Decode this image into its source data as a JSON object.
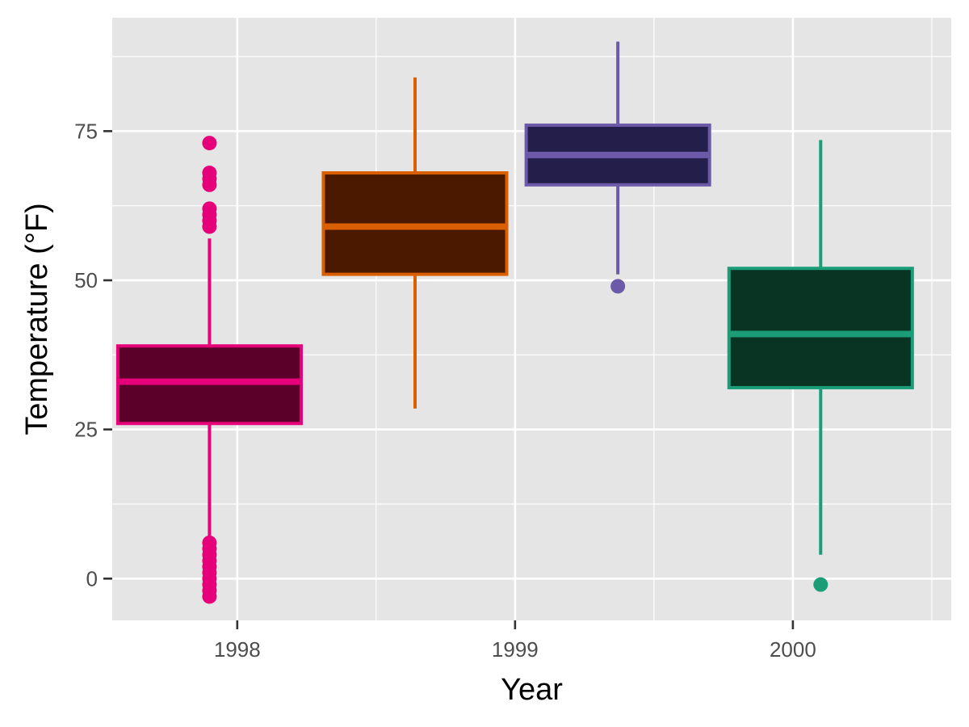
{
  "chart_data": {
    "type": "box",
    "xlabel": "Year",
    "ylabel": "Temperature (°F)",
    "ylim": [
      -7,
      94
    ],
    "xlim": [
      1997.55,
      2000.57
    ],
    "y_ticks": [
      0,
      25,
      50,
      75
    ],
    "x_ticks": [
      1998,
      1999,
      2000
    ],
    "grid": true,
    "panel_background": "#e5e5e5",
    "boxes": [
      {
        "x": 1997.9,
        "q1": 26,
        "median": 33,
        "q3": 39,
        "whisker_low": 6,
        "whisker_high": 57,
        "outliers": [
          73,
          68,
          67,
          66,
          62,
          61,
          60,
          59,
          6,
          5,
          4,
          3,
          2,
          1,
          0,
          -1,
          -2,
          -3
        ],
        "color": "#e6007a",
        "fill": "#5a0029"
      },
      {
        "x": 1998.64,
        "q1": 51,
        "median": 59,
        "q3": 68,
        "whisker_low": 28.5,
        "whisker_high": 84,
        "outliers": [],
        "color": "#d95f02",
        "fill": "#4a1900"
      },
      {
        "x": 1999.37,
        "q1": 66,
        "median": 71,
        "q3": 76,
        "whisker_low": 51,
        "whisker_high": 90,
        "outliers": [
          49
        ],
        "color": "#6a5aa8",
        "fill": "#231f4a"
      },
      {
        "x": 2000.1,
        "q1": 32,
        "median": 41,
        "q3": 52,
        "whisker_low": 4,
        "whisker_high": 73.5,
        "outliers": [
          -1
        ],
        "color": "#1b9e77",
        "fill": "#093424"
      }
    ]
  }
}
